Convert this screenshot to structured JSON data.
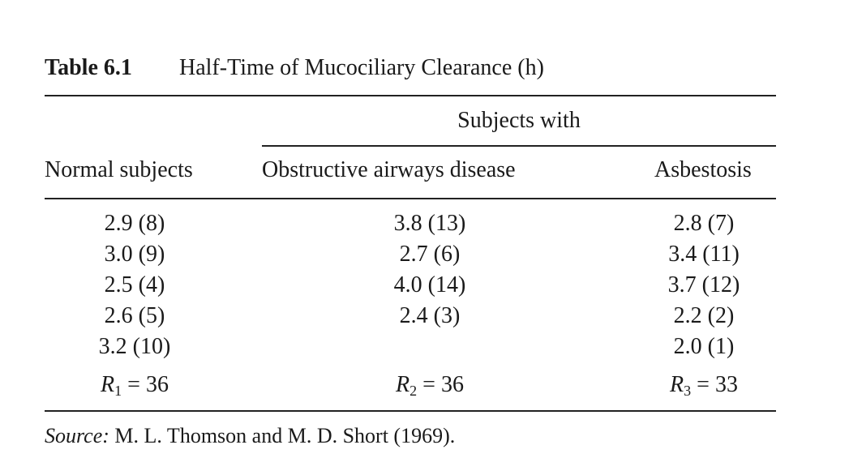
{
  "table": {
    "label": "Table 6.1",
    "title": "Half-Time of Mucociliary Clearance (h)",
    "spanner": "Subjects with",
    "columns": [
      "Normal subjects",
      "Obstructive airways disease",
      "Asbestosis"
    ],
    "rows": [
      [
        "2.9 (8)",
        "3.8 (13)",
        "2.8 (7)"
      ],
      [
        "3.0 (9)",
        "2.7 (6)",
        "3.4 (11)"
      ],
      [
        "2.5 (4)",
        "4.0 (14)",
        "3.7 (12)"
      ],
      [
        "2.6 (5)",
        "2.4 (3)",
        "2.2 (2)"
      ],
      [
        "3.2 (10)",
        null,
        "2.0 (1)"
      ]
    ],
    "sums": [
      {
        "symbol": "R",
        "subscript": "1",
        "relation": "=",
        "value": 36
      },
      {
        "symbol": "R",
        "subscript": "2",
        "relation": "=",
        "value": 36
      },
      {
        "symbol": "R",
        "subscript": "3",
        "relation": "=",
        "value": 33
      }
    ]
  },
  "source": {
    "label": "Source:",
    "text": "M. L. Thomson and M. D. Short (1969)."
  }
}
